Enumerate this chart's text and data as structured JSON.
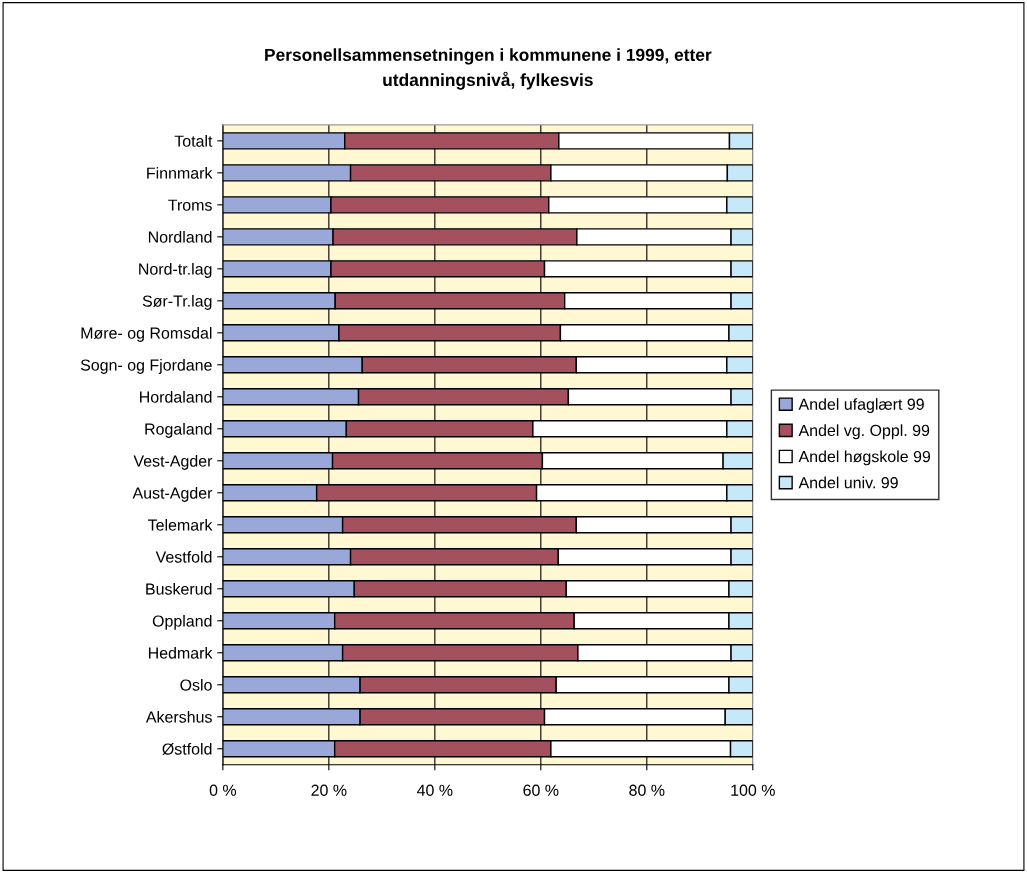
{
  "chart_data": {
    "type": "bar",
    "orientation": "horizontal",
    "stacked": true,
    "title": "Personellsammensetningen i kommunene i 1999, etter\nutdanningsnivå, fylkesvis",
    "categories": [
      "Totalt",
      "Finnmark",
      "Troms",
      "Nordland",
      "Nord-tr.lag",
      "Sør-Tr.lag",
      "Møre- og Romsdal",
      "Sogn- og Fjordane",
      "Hordaland",
      "Rogaland",
      "Vest-Agder",
      "Aust-Agder",
      "Telemark",
      "Vestfold",
      "Buskerud",
      "Oppland",
      "Hedmark",
      "Oslo",
      "Akershus",
      "Østfold"
    ],
    "series": [
      {
        "name": "Andel ufaglært 99",
        "color": "#99a8d8",
        "values": [
          23.0,
          24.1,
          20.4,
          20.8,
          20.4,
          21.2,
          21.9,
          26.3,
          25.6,
          23.3,
          20.7,
          17.7,
          22.6,
          24.1,
          24.8,
          21.1,
          22.6,
          25.9,
          25.9,
          21.1
        ]
      },
      {
        "name": "Andel vg. Oppl. 99",
        "color": "#a5505e",
        "values": [
          40.4,
          37.8,
          41.1,
          46.0,
          40.3,
          43.3,
          41.8,
          40.4,
          39.6,
          35.2,
          39.6,
          41.5,
          44.1,
          39.2,
          40.0,
          45.2,
          44.4,
          37.0,
          34.8,
          40.8
        ]
      },
      {
        "name": "Andel høgskole 99",
        "color": "#ffffff",
        "values": [
          32.2,
          33.3,
          33.6,
          29.1,
          35.2,
          31.4,
          31.8,
          28.4,
          30.7,
          36.6,
          34.1,
          35.9,
          29.2,
          32.6,
          30.7,
          29.2,
          28.9,
          32.6,
          34.1,
          33.9
        ]
      },
      {
        "name": "Andel univ. 99",
        "color": "#c6e8f8",
        "values": [
          4.4,
          4.8,
          4.9,
          4.1,
          4.1,
          4.1,
          4.5,
          4.9,
          4.1,
          4.9,
          5.6,
          4.9,
          4.1,
          4.1,
          4.5,
          4.5,
          4.1,
          4.5,
          5.2,
          4.2
        ]
      }
    ],
    "xlim": [
      0,
      100
    ],
    "xticks": [
      {
        "value": 0,
        "label": "0 %"
      },
      {
        "value": 20,
        "label": "20 %"
      },
      {
        "value": 40,
        "label": "40 %"
      },
      {
        "value": 60,
        "label": "60 %"
      },
      {
        "value": 80,
        "label": "80 %"
      },
      {
        "value": 100,
        "label": "100 %"
      }
    ],
    "grid": "x",
    "legend": "right"
  }
}
